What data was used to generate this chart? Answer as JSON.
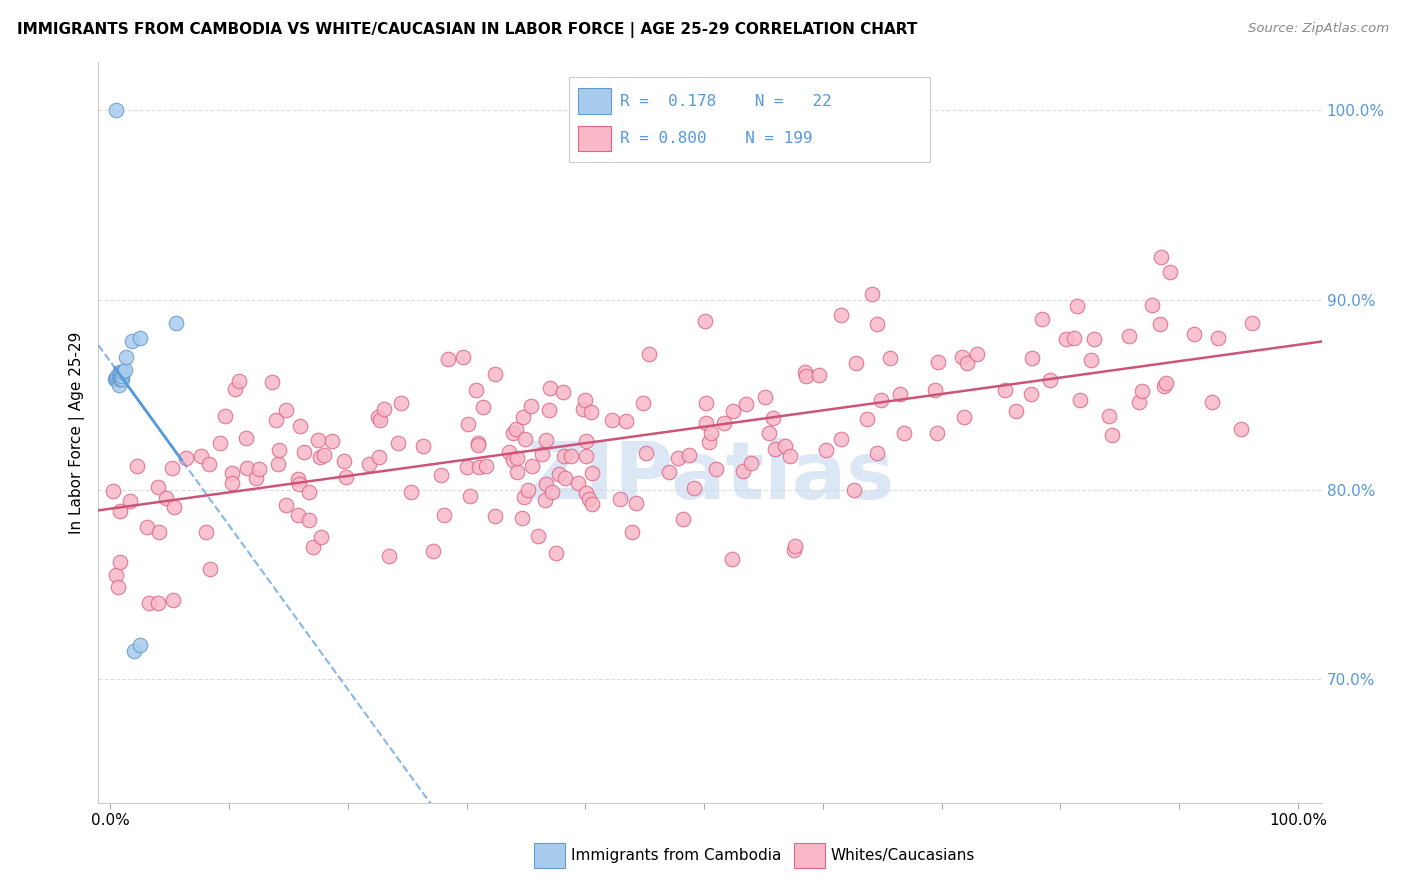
{
  "title": "IMMIGRANTS FROM CAMBODIA VS WHITE/CAUCASIAN IN LABOR FORCE | AGE 25-29 CORRELATION CHART",
  "source": "Source: ZipAtlas.com",
  "ylabel": "In Labor Force | Age 25-29",
  "xlim": [
    -0.01,
    1.02
  ],
  "ylim": [
    0.635,
    1.025
  ],
  "ytick_labels": [
    "70.0%",
    "80.0%",
    "90.0%",
    "100.0%"
  ],
  "ytick_values": [
    0.7,
    0.8,
    0.9,
    1.0
  ],
  "legend_r_cambodia": "0.178",
  "legend_n_cambodia": "22",
  "legend_r_white": "0.800",
  "legend_n_white": "199",
  "color_cambodia_fill": "#A8CCEE",
  "color_cambodia_edge": "#6699CC",
  "color_white_fill": "#F8B8C8",
  "color_white_edge": "#DD6688",
  "color_trendline_cambodia": "#5599DD",
  "color_trendline_white": "#CC5577",
  "color_right_labels": "#5599DD",
  "color_grid": "#DDDDDD",
  "watermark_color": "#C5D8F0",
  "seed_white": 77,
  "seed_camb": 42
}
